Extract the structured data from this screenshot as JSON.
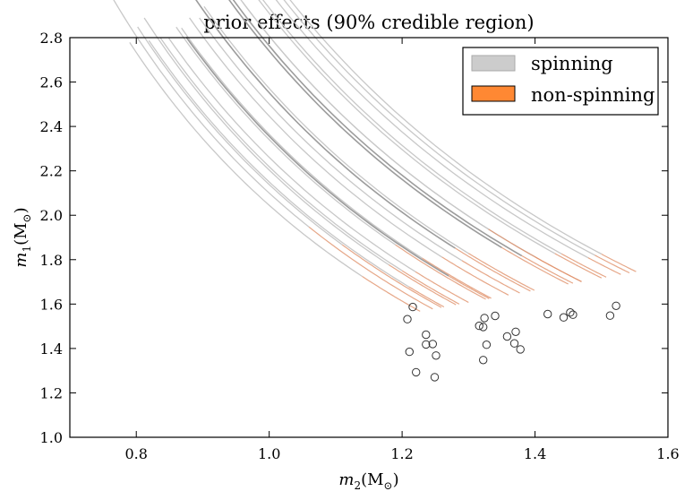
{
  "chart_data": {
    "type": "line",
    "title": "prior effects (90% credible region)",
    "xlabel": {
      "var": "m",
      "sub": "2",
      "unit": "(M",
      "unit_sub": "⊙",
      "close": ")"
    },
    "ylabel": {
      "var": "m",
      "sub": "1",
      "unit": "(M",
      "unit_sub": "⊙",
      "close": ")"
    },
    "xlim": [
      0.7,
      1.6
    ],
    "ylim": [
      1.0,
      2.8
    ],
    "xticks": [
      "0.8",
      "1.0",
      "1.2",
      "1.4",
      "1.6"
    ],
    "yticks": [
      "1.0",
      "1.2",
      "1.4",
      "1.6",
      "1.8",
      "2.0",
      "2.2",
      "2.4",
      "2.6",
      "2.8"
    ],
    "legend": {
      "position": "top-right",
      "entries": [
        {
          "label": "spinning",
          "color": "#cccccc"
        },
        {
          "label": "non-spinning",
          "color": "#ff8833"
        }
      ]
    },
    "colors": {
      "spinning": "#c8c8c8",
      "spinning_dark": "#9c9c9c",
      "non_spinning": "#e0916a",
      "marker": "#333333"
    },
    "series": [
      {
        "x": [
          0.759,
          1.246
        ],
        "spin_end": 1.06,
        "dark": false
      },
      {
        "x": [
          0.79,
          1.227
        ],
        "spin_end": 1.14,
        "dark": false
      },
      {
        "x": [
          0.802,
          1.259
        ],
        "spin_end": 1.11,
        "dark": false
      },
      {
        "x": [
          0.812,
          1.281
        ],
        "spin_end": 1.18,
        "dark": false
      },
      {
        "x": [
          0.819,
          1.263
        ],
        "spin_end": 1.21,
        "dark": false
      },
      {
        "x": [
          0.836,
          1.286
        ],
        "spin_end": 1.2,
        "dark": false
      },
      {
        "x": [
          0.849,
          1.3
        ],
        "spin_end": 1.22,
        "dark": false
      },
      {
        "x": [
          0.86,
          1.326
        ],
        "spin_end": 1.19,
        "dark": false
      },
      {
        "x": [
          0.868,
          1.334
        ],
        "spin_end": 1.23,
        "dark": false
      },
      {
        "x": [
          0.875,
          1.331
        ],
        "spin_end": 1.27,
        "dark": true
      },
      {
        "x": [
          0.88,
          1.36
        ],
        "spin_end": 1.26,
        "dark": false
      },
      {
        "x": [
          0.888,
          1.393
        ],
        "spin_end": 1.28,
        "dark": true
      },
      {
        "x": [
          0.895,
          1.377
        ],
        "spin_end": 1.29,
        "dark": false
      },
      {
        "x": [
          0.902,
          1.399
        ],
        "spin_end": 1.3,
        "dark": false
      },
      {
        "x": [
          0.908,
          1.45
        ],
        "spin_end": 1.35,
        "dark": true
      },
      {
        "x": [
          0.915,
          1.457
        ],
        "spin_end": 1.38,
        "dark": true
      },
      {
        "x": [
          0.928,
          1.47
        ],
        "spin_end": 1.4,
        "dark": false
      },
      {
        "x": [
          0.935,
          1.5
        ],
        "spin_end": 1.43,
        "dark": false
      },
      {
        "x": [
          0.945,
          1.507
        ],
        "spin_end": 1.44,
        "dark": false
      },
      {
        "x": [
          0.96,
          1.47
        ],
        "spin_end": 1.33,
        "dark": false
      },
      {
        "x": [
          0.968,
          1.529
        ],
        "spin_end": 1.48,
        "dark": false
      },
      {
        "x": [
          0.994,
          1.542
        ],
        "spin_end": 1.49,
        "dark": false
      },
      {
        "x": [
          1.0,
          1.552
        ],
        "spin_end": 1.5,
        "dark": false
      }
    ],
    "points": [
      {
        "x": 1.221,
        "y": 1.293
      },
      {
        "x": 1.249,
        "y": 1.271
      },
      {
        "x": 1.211,
        "y": 1.385
      },
      {
        "x": 1.236,
        "y": 1.418
      },
      {
        "x": 1.246,
        "y": 1.42
      },
      {
        "x": 1.251,
        "y": 1.368
      },
      {
        "x": 1.236,
        "y": 1.462
      },
      {
        "x": 1.208,
        "y": 1.532
      },
      {
        "x": 1.216,
        "y": 1.587
      },
      {
        "x": 1.322,
        "y": 1.348
      },
      {
        "x": 1.327,
        "y": 1.417
      },
      {
        "x": 1.316,
        "y": 1.502
      },
      {
        "x": 1.322,
        "y": 1.497
      },
      {
        "x": 1.324,
        "y": 1.537
      },
      {
        "x": 1.34,
        "y": 1.547
      },
      {
        "x": 1.358,
        "y": 1.454
      },
      {
        "x": 1.369,
        "y": 1.423
      },
      {
        "x": 1.371,
        "y": 1.475
      },
      {
        "x": 1.378,
        "y": 1.396
      },
      {
        "x": 1.419,
        "y": 1.555
      },
      {
        "x": 1.443,
        "y": 1.54
      },
      {
        "x": 1.453,
        "y": 1.562
      },
      {
        "x": 1.457,
        "y": 1.552
      },
      {
        "x": 1.513,
        "y": 1.548
      },
      {
        "x": 1.522,
        "y": 1.592
      }
    ]
  }
}
